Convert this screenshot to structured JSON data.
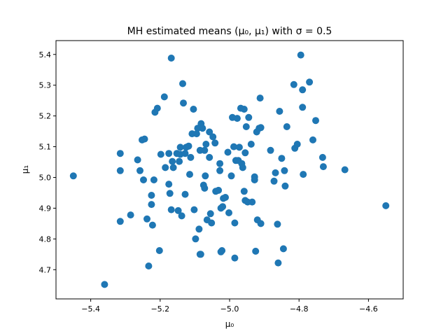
{
  "chart_data": {
    "type": "scatter",
    "title": "MH estimated means (μ₀, μ₁) with σ = 0.5",
    "xlabel": "μ₀",
    "ylabel": "μ₁",
    "xlim": [
      -5.5,
      -4.5
    ],
    "ylim": [
      4.605,
      5.445
    ],
    "xticks": [
      -5.4,
      -5.2,
      -5.0,
      -4.8,
      -4.6
    ],
    "xtick_labels": [
      "−5.4",
      "−5.2",
      "−5.0",
      "−4.8",
      "−4.6"
    ],
    "yticks": [
      4.7,
      4.8,
      4.9,
      5.0,
      5.1,
      5.2,
      5.3,
      5.4
    ],
    "ytick_labels": [
      "4.7",
      "4.8",
      "4.9",
      "5.0",
      "5.1",
      "5.2",
      "5.3",
      "5.4"
    ],
    "grid": false,
    "marker_color": "#1f77b4",
    "points": [
      [
        -5.45,
        5.005
      ],
      [
        -5.36,
        4.652
      ],
      [
        -5.315,
        5.078
      ],
      [
        -5.315,
        5.022
      ],
      [
        -5.315,
        4.857
      ],
      [
        -5.285,
        4.878
      ],
      [
        -5.265,
        5.057
      ],
      [
        -5.258,
        5.022
      ],
      [
        -5.252,
        5.122
      ],
      [
        -5.248,
        4.992
      ],
      [
        -5.238,
        4.865
      ],
      [
        -5.233,
        4.712
      ],
      [
        -5.225,
        4.942
      ],
      [
        -5.225,
        4.912
      ],
      [
        -5.222,
        4.845
      ],
      [
        -5.218,
        4.992
      ],
      [
        -5.215,
        5.212
      ],
      [
        -5.208,
        5.225
      ],
      [
        -5.202,
        4.762
      ],
      [
        -5.198,
        5.075
      ],
      [
        -5.188,
        5.262
      ],
      [
        -5.185,
        5.032
      ],
      [
        -5.175,
        5.078
      ],
      [
        -5.175,
        4.978
      ],
      [
        -5.172,
        4.948
      ],
      [
        -5.168,
        5.388
      ],
      [
        -5.168,
        4.895
      ],
      [
        -5.165,
        5.052
      ],
      [
        -5.162,
        5.032
      ],
      [
        -5.152,
        5.078
      ],
      [
        -5.148,
        4.892
      ],
      [
        -5.145,
        5.052
      ],
      [
        -5.142,
        5.098
      ],
      [
        -5.142,
        5.075
      ],
      [
        -5.138,
        4.875
      ],
      [
        -5.135,
        5.305
      ],
      [
        -5.133,
        5.242
      ],
      [
        -5.128,
        5.078
      ],
      [
        -5.128,
        4.945
      ],
      [
        -5.125,
        5.098
      ],
      [
        -5.118,
        5.102
      ],
      [
        -5.115,
        5.01
      ],
      [
        -5.112,
        5.065
      ],
      [
        -5.108,
        5.142
      ],
      [
        -5.104,
        5.222
      ],
      [
        -5.102,
        4.895
      ],
      [
        -5.098,
        4.8
      ],
      [
        -5.095,
        5.142
      ],
      [
        -5.092,
        5.16
      ],
      [
        -5.088,
        4.832
      ],
      [
        -5.085,
        5.088
      ],
      [
        -5.083,
        4.75
      ],
      [
        -5.082,
        5.175
      ],
      [
        -5.078,
        5.16
      ],
      [
        -5.075,
        4.975
      ],
      [
        -5.072,
        4.965
      ],
      [
        -5.072,
        5.088
      ],
      [
        -5.07,
        5.005
      ],
      [
        -5.068,
        5.108
      ],
      [
        -5.065,
        4.862
      ],
      [
        -5.058,
        5.148
      ],
      [
        -5.058,
        5.065
      ],
      [
        -5.055,
        4.882
      ],
      [
        -5.052,
        4.852
      ],
      [
        -5.048,
        5.132
      ],
      [
        -5.042,
        5.112
      ],
      [
        -5.04,
        4.955
      ],
      [
        -5.032,
        4.958
      ],
      [
        -5.028,
        5.045
      ],
      [
        -5.028,
        5.022
      ],
      [
        -5.025,
        4.9
      ],
      [
        -5.025,
        4.758
      ],
      [
        -5.022,
        4.762
      ],
      [
        -5.018,
        4.932
      ],
      [
        -5.012,
        4.935
      ],
      [
        -5.005,
        5.082
      ],
      [
        -5.002,
        4.885
      ],
      [
        -4.995,
        5.005
      ],
      [
        -4.992,
        5.195
      ],
      [
        -4.988,
        5.1
      ],
      [
        -4.985,
        4.852
      ],
      [
        -4.985,
        4.738
      ],
      [
        -4.982,
        5.055
      ],
      [
        -4.978,
        5.192
      ],
      [
        -4.975,
        5.055
      ],
      [
        -4.972,
        5.098
      ],
      [
        -4.968,
        5.225
      ],
      [
        -4.965,
        5.045
      ],
      [
        -4.962,
        5.032
      ],
      [
        -4.958,
        5.222
      ],
      [
        -4.958,
        4.955
      ],
      [
        -4.955,
        5.08
      ],
      [
        -4.955,
        4.925
      ],
      [
        -4.952,
        5.165
      ],
      [
        -4.948,
        4.92
      ],
      [
        -4.938,
        5.108
      ],
      [
        -4.935,
        4.92
      ],
      [
        -4.928,
        5.002
      ],
      [
        -4.928,
        4.992
      ],
      [
        -4.922,
        5.148
      ],
      [
        -4.925,
        4.76
      ],
      [
        -4.92,
        4.862
      ],
      [
        -4.915,
        5.16
      ],
      [
        -4.912,
        5.258
      ],
      [
        -4.91,
        5.162
      ],
      [
        -4.882,
        5.088
      ],
      [
        -4.872,
        4.988
      ],
      [
        -4.868,
        5.015
      ],
      [
        -4.862,
        4.848
      ],
      [
        -4.86,
        4.722
      ],
      [
        -4.856,
        5.215
      ],
      [
        -4.85,
        5.062
      ],
      [
        -4.845,
        4.768
      ],
      [
        -4.842,
        5.022
      ],
      [
        -4.84,
        4.972
      ],
      [
        -4.835,
        5.165
      ],
      [
        -4.815,
        5.302
      ],
      [
        -4.812,
        5.095
      ],
      [
        -4.805,
        5.108
      ],
      [
        -4.795,
        5.398
      ],
      [
        -4.79,
        5.285
      ],
      [
        -4.79,
        5.228
      ],
      [
        -4.788,
        5.01
      ],
      [
        -4.77,
        5.31
      ],
      [
        -4.76,
        5.122
      ],
      [
        -4.752,
        5.185
      ],
      [
        -4.732,
        5.065
      ],
      [
        -4.73,
        5.035
      ],
      [
        -4.668,
        5.025
      ],
      [
        -4.55,
        4.908
      ],
      [
        -5.245,
        5.125
      ],
      [
        -5.085,
        4.75
      ],
      [
        -4.91,
        4.85
      ],
      [
        -5.02,
        4.905
      ],
      [
        -4.945,
        5.195
      ]
    ]
  }
}
